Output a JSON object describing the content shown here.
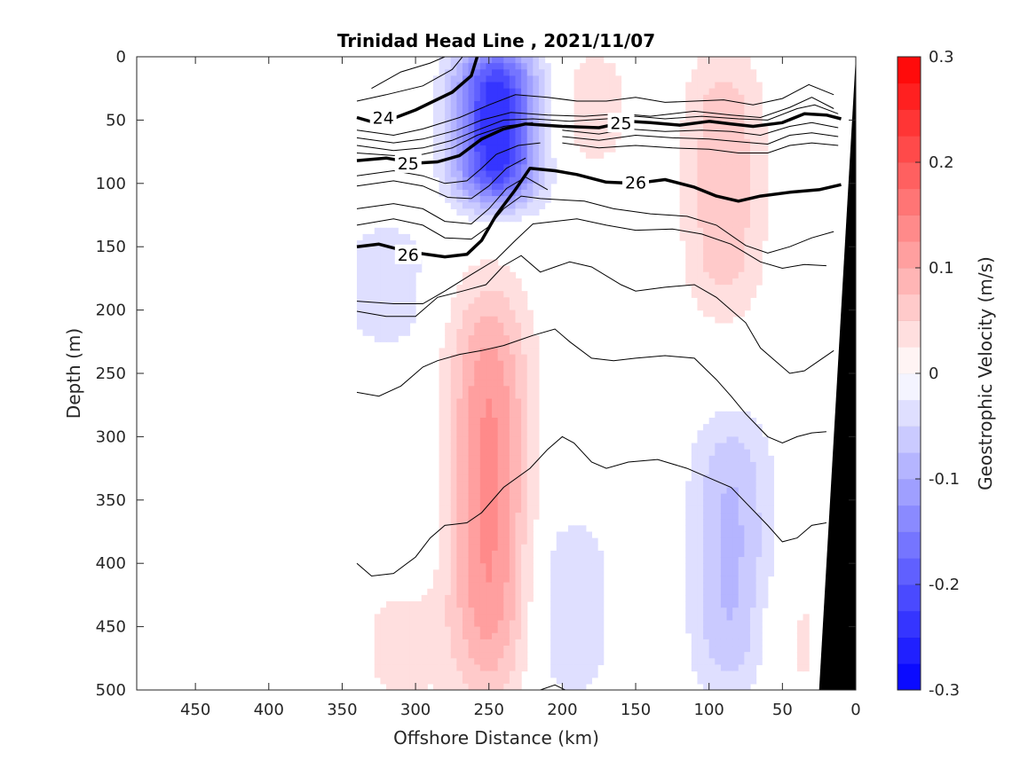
{
  "chart_data": {
    "type": "contour",
    "title": "Trinidad Head Line , 2021/11/07",
    "xlabel": "Offshore Distance (km)",
    "ylabel": "Depth (m)",
    "xlim": [
      490,
      0
    ],
    "ylim": [
      500,
      0
    ],
    "x_reversed": true,
    "y_reversed": true,
    "xticks": [
      450,
      400,
      350,
      300,
      250,
      200,
      150,
      100,
      50,
      0
    ],
    "yticks": [
      0,
      50,
      100,
      150,
      200,
      250,
      300,
      350,
      400,
      450,
      500
    ],
    "colorbar": {
      "label": "Geostrophic Velocity (m/s)",
      "range": [
        -0.3,
        0.3
      ],
      "ticks": [
        0.3,
        0.2,
        0.1,
        0,
        -0.1,
        -0.2,
        -0.3
      ],
      "tick_labels": [
        "0.3",
        "0.2",
        "0.1",
        "0",
        "-0.1",
        "-0.2",
        "-0.3"
      ],
      "levels": 24,
      "color_positive": "#ff0000",
      "color_zero": "#ffffff",
      "color_negative": "#0000ff"
    },
    "velocity_features": [
      {
        "sign": "negative",
        "center_km": 245,
        "depth_range": [
          0,
          110
        ],
        "peak": -0.25
      },
      {
        "sign": "negative",
        "center_km": 320,
        "depth_range": [
          140,
          220
        ],
        "peak": -0.05
      },
      {
        "sign": "negative",
        "center_km": 195,
        "depth_range": [
          370,
          500
        ],
        "peak": -0.05
      },
      {
        "sign": "negative",
        "center_km": 85,
        "depth_range": [
          290,
          500
        ],
        "peak": -0.08
      },
      {
        "sign": "positive",
        "center_km": 250,
        "depth_range": [
          190,
          500
        ],
        "peak": 0.13
      },
      {
        "sign": "positive",
        "center_km": 90,
        "depth_range": [
          0,
          200
        ],
        "peak": 0.07
      },
      {
        "sign": "positive",
        "center_km": 180,
        "depth_range": [
          0,
          80
        ],
        "peak": 0.04
      },
      {
        "sign": "positive",
        "center_km": 310,
        "depth_range": [
          430,
          500
        ],
        "peak": 0.04
      },
      {
        "sign": "positive",
        "center_km": 40,
        "depth_range": [
          420,
          500
        ],
        "peak": 0.03
      }
    ],
    "density_contours_bold": [
      {
        "label": "24",
        "points": [
          [
            340,
            48
          ],
          [
            325,
            53
          ],
          [
            300,
            42
          ],
          [
            275,
            28
          ],
          [
            262,
            15
          ],
          [
            258,
            0
          ]
        ],
        "label_at": [
          322,
          48
        ]
      },
      {
        "label": "25",
        "points": [
          [
            340,
            82
          ],
          [
            320,
            80
          ],
          [
            300,
            84
          ],
          [
            285,
            83
          ],
          [
            270,
            78
          ],
          [
            255,
            65
          ],
          [
            240,
            57
          ],
          [
            225,
            53
          ],
          [
            200,
            55
          ],
          [
            175,
            56
          ],
          [
            155,
            51
          ],
          [
            140,
            52
          ],
          [
            120,
            54
          ],
          [
            100,
            51
          ],
          [
            85,
            53
          ],
          [
            70,
            55
          ],
          [
            50,
            52
          ],
          [
            35,
            45
          ],
          [
            20,
            46
          ],
          [
            10,
            49
          ]
        ],
        "label_at": [
          160,
          52
        ],
        "label2_at": [
          305,
          84
        ]
      },
      {
        "label": "26",
        "points": [
          [
            340,
            150
          ],
          [
            325,
            148
          ],
          [
            305,
            154
          ],
          [
            280,
            158
          ],
          [
            265,
            156
          ],
          [
            255,
            145
          ],
          [
            245,
            125
          ],
          [
            232,
            105
          ],
          [
            222,
            88
          ],
          [
            205,
            90
          ],
          [
            190,
            93
          ],
          [
            170,
            99
          ],
          [
            150,
            100
          ],
          [
            130,
            97
          ],
          [
            110,
            103
          ],
          [
            95,
            110
          ],
          [
            80,
            114
          ],
          [
            65,
            110
          ],
          [
            45,
            107
          ],
          [
            25,
            105
          ],
          [
            10,
            101
          ]
        ],
        "label_at": [
          150,
          99
        ],
        "label2_at": [
          305,
          156
        ]
      }
    ],
    "density_contours_thin": [
      [
        [
          330,
          25
        ],
        [
          310,
          12
        ],
        [
          290,
          5
        ],
        [
          280,
          0
        ]
      ],
      [
        [
          340,
          35
        ],
        [
          320,
          30
        ],
        [
          295,
          23
        ],
        [
          275,
          10
        ],
        [
          268,
          0
        ]
      ],
      [
        [
          340,
          58
        ],
        [
          315,
          62
        ],
        [
          295,
          57
        ],
        [
          270,
          48
        ],
        [
          250,
          38
        ],
        [
          232,
          30
        ],
        [
          210,
          32
        ],
        [
          190,
          35
        ],
        [
          170,
          35
        ],
        [
          150,
          32
        ],
        [
          130,
          36
        ],
        [
          110,
          35
        ],
        [
          90,
          34
        ],
        [
          70,
          38
        ],
        [
          50,
          33
        ],
        [
          32,
          22
        ],
        [
          15,
          30
        ]
      ],
      [
        [
          340,
          64
        ],
        [
          315,
          68
        ],
        [
          295,
          65
        ],
        [
          272,
          58
        ],
        [
          255,
          50
        ],
        [
          235,
          44
        ],
        [
          210,
          46
        ],
        [
          185,
          47
        ],
        [
          160,
          45
        ],
        [
          140,
          47
        ],
        [
          110,
          43
        ],
        [
          85,
          46
        ],
        [
          65,
          48
        ],
        [
          45,
          40
        ],
        [
          30,
          32
        ],
        [
          15,
          41
        ]
      ],
      [
        [
          340,
          70
        ],
        [
          315,
          74
        ],
        [
          295,
          72
        ],
        [
          275,
          66
        ],
        [
          258,
          58
        ],
        [
          240,
          50
        ],
        [
          220,
          49
        ],
        [
          195,
          51
        ],
        [
          170,
          49
        ],
        [
          150,
          47
        ],
        [
          130,
          49
        ],
        [
          105,
          47
        ],
        [
          80,
          49
        ],
        [
          60,
          50
        ],
        [
          40,
          41
        ],
        [
          28,
          38
        ],
        [
          12,
          45
        ]
      ],
      [
        [
          340,
          76
        ],
        [
          315,
          78
        ],
        [
          295,
          77
        ],
        [
          275,
          72
        ],
        [
          258,
          62
        ],
        [
          240,
          55
        ],
        [
          220,
          52
        ]
      ],
      [
        [
          200,
          58
        ],
        [
          175,
          61
        ],
        [
          155,
          57
        ],
        [
          130,
          59
        ],
        [
          105,
          58
        ],
        [
          85,
          59
        ],
        [
          65,
          62
        ],
        [
          45,
          55
        ],
        [
          30,
          52
        ],
        [
          12,
          56
        ]
      ],
      [
        [
          200,
          63
        ],
        [
          175,
          66
        ],
        [
          150,
          62
        ],
        [
          125,
          64
        ],
        [
          100,
          65
        ],
        [
          80,
          67
        ],
        [
          60,
          69
        ],
        [
          45,
          62
        ],
        [
          30,
          60
        ],
        [
          12,
          63
        ]
      ],
      [
        [
          200,
          68
        ],
        [
          175,
          72
        ],
        [
          150,
          70
        ],
        [
          125,
          72
        ],
        [
          100,
          73
        ],
        [
          80,
          76
        ],
        [
          60,
          76
        ],
        [
          45,
          70
        ],
        [
          30,
          68
        ],
        [
          12,
          70
        ]
      ],
      [
        [
          340,
          94
        ],
        [
          315,
          90
        ],
        [
          295,
          94
        ],
        [
          280,
          100
        ],
        [
          265,
          98
        ],
        [
          255,
          88
        ],
        [
          245,
          77
        ],
        [
          230,
          70
        ],
        [
          215,
          68
        ]
      ],
      [
        [
          340,
          102
        ],
        [
          315,
          98
        ],
        [
          295,
          102
        ],
        [
          278,
          111
        ],
        [
          262,
          112
        ],
        [
          250,
          102
        ],
        [
          238,
          88
        ],
        [
          225,
          80
        ]
      ],
      [
        [
          340,
          120
        ],
        [
          315,
          116
        ],
        [
          295,
          120
        ],
        [
          280,
          130
        ],
        [
          262,
          132
        ],
        [
          250,
          120
        ],
        [
          238,
          104
        ],
        [
          225,
          95
        ],
        [
          210,
          105
        ]
      ],
      [
        [
          340,
          133
        ],
        [
          315,
          128
        ],
        [
          295,
          133
        ],
        [
          280,
          143
        ],
        [
          262,
          144
        ],
        [
          250,
          134
        ],
        [
          240,
          120
        ],
        [
          228,
          110
        ],
        [
          215,
          112
        ],
        [
          200,
          113
        ],
        [
          185,
          114
        ],
        [
          165,
          120
        ],
        [
          140,
          124
        ],
        [
          115,
          126
        ],
        [
          95,
          133
        ],
        [
          75,
          149
        ],
        [
          60,
          155
        ],
        [
          45,
          150
        ],
        [
          30,
          143
        ],
        [
          15,
          138
        ]
      ],
      [
        [
          340,
          193
        ],
        [
          315,
          195
        ],
        [
          295,
          195
        ],
        [
          280,
          185
        ],
        [
          262,
          172
        ],
        [
          245,
          160
        ],
        [
          232,
          145
        ],
        [
          220,
          132
        ],
        [
          205,
          130
        ],
        [
          190,
          128
        ],
        [
          170,
          133
        ],
        [
          150,
          137
        ],
        [
          125,
          136
        ],
        [
          105,
          140
        ],
        [
          85,
          148
        ],
        [
          65,
          162
        ],
        [
          50,
          167
        ],
        [
          35,
          164
        ],
        [
          20,
          165
        ]
      ],
      [
        [
          340,
          201
        ],
        [
          320,
          205
        ],
        [
          300,
          205
        ],
        [
          285,
          190
        ],
        [
          268,
          185
        ],
        [
          252,
          180
        ],
        [
          240,
          165
        ],
        [
          228,
          157
        ],
        [
          215,
          170
        ],
        [
          205,
          166
        ],
        [
          195,
          162
        ],
        [
          180,
          166
        ],
        [
          160,
          180
        ],
        [
          150,
          185
        ],
        [
          130,
          182
        ],
        [
          110,
          180
        ],
        [
          95,
          190
        ],
        [
          85,
          200
        ],
        [
          75,
          210
        ],
        [
          65,
          230
        ],
        [
          55,
          240
        ],
        [
          45,
          250
        ],
        [
          35,
          248
        ],
        [
          25,
          240
        ],
        [
          15,
          232
        ]
      ],
      [
        [
          340,
          265
        ],
        [
          325,
          268
        ],
        [
          310,
          260
        ],
        [
          295,
          245
        ],
        [
          285,
          240
        ],
        [
          270,
          235
        ],
        [
          255,
          232
        ],
        [
          240,
          228
        ],
        [
          220,
          220
        ],
        [
          205,
          215
        ],
        [
          195,
          225
        ],
        [
          180,
          238
        ],
        [
          165,
          240
        ],
        [
          150,
          238
        ],
        [
          130,
          236
        ],
        [
          110,
          238
        ],
        [
          95,
          255
        ],
        [
          85,
          268
        ],
        [
          75,
          282
        ],
        [
          60,
          300
        ],
        [
          50,
          305
        ],
        [
          40,
          300
        ],
        [
          30,
          297
        ],
        [
          20,
          296
        ]
      ],
      [
        [
          340,
          400
        ],
        [
          330,
          410
        ],
        [
          315,
          408
        ],
        [
          300,
          395
        ],
        [
          290,
          380
        ],
        [
          280,
          370
        ],
        [
          265,
          368
        ],
        [
          255,
          360
        ],
        [
          240,
          340
        ],
        [
          222,
          325
        ],
        [
          210,
          310
        ],
        [
          200,
          300
        ],
        [
          192,
          305
        ],
        [
          180,
          320
        ],
        [
          170,
          325
        ],
        [
          155,
          320
        ],
        [
          135,
          318
        ],
        [
          115,
          325
        ],
        [
          95,
          335
        ],
        [
          85,
          340
        ],
        [
          75,
          352
        ],
        [
          60,
          370
        ],
        [
          50,
          383
        ],
        [
          40,
          380
        ],
        [
          30,
          370
        ],
        [
          20,
          368
        ]
      ],
      [
        [
          215,
          500
        ],
        [
          205,
          496
        ],
        [
          198,
          500
        ]
      ]
    ],
    "bathymetry": {
      "points": [
        [
          0,
          0
        ],
        [
          25,
          500
        ],
        [
          0,
          500
        ]
      ],
      "color": "#000000"
    }
  }
}
